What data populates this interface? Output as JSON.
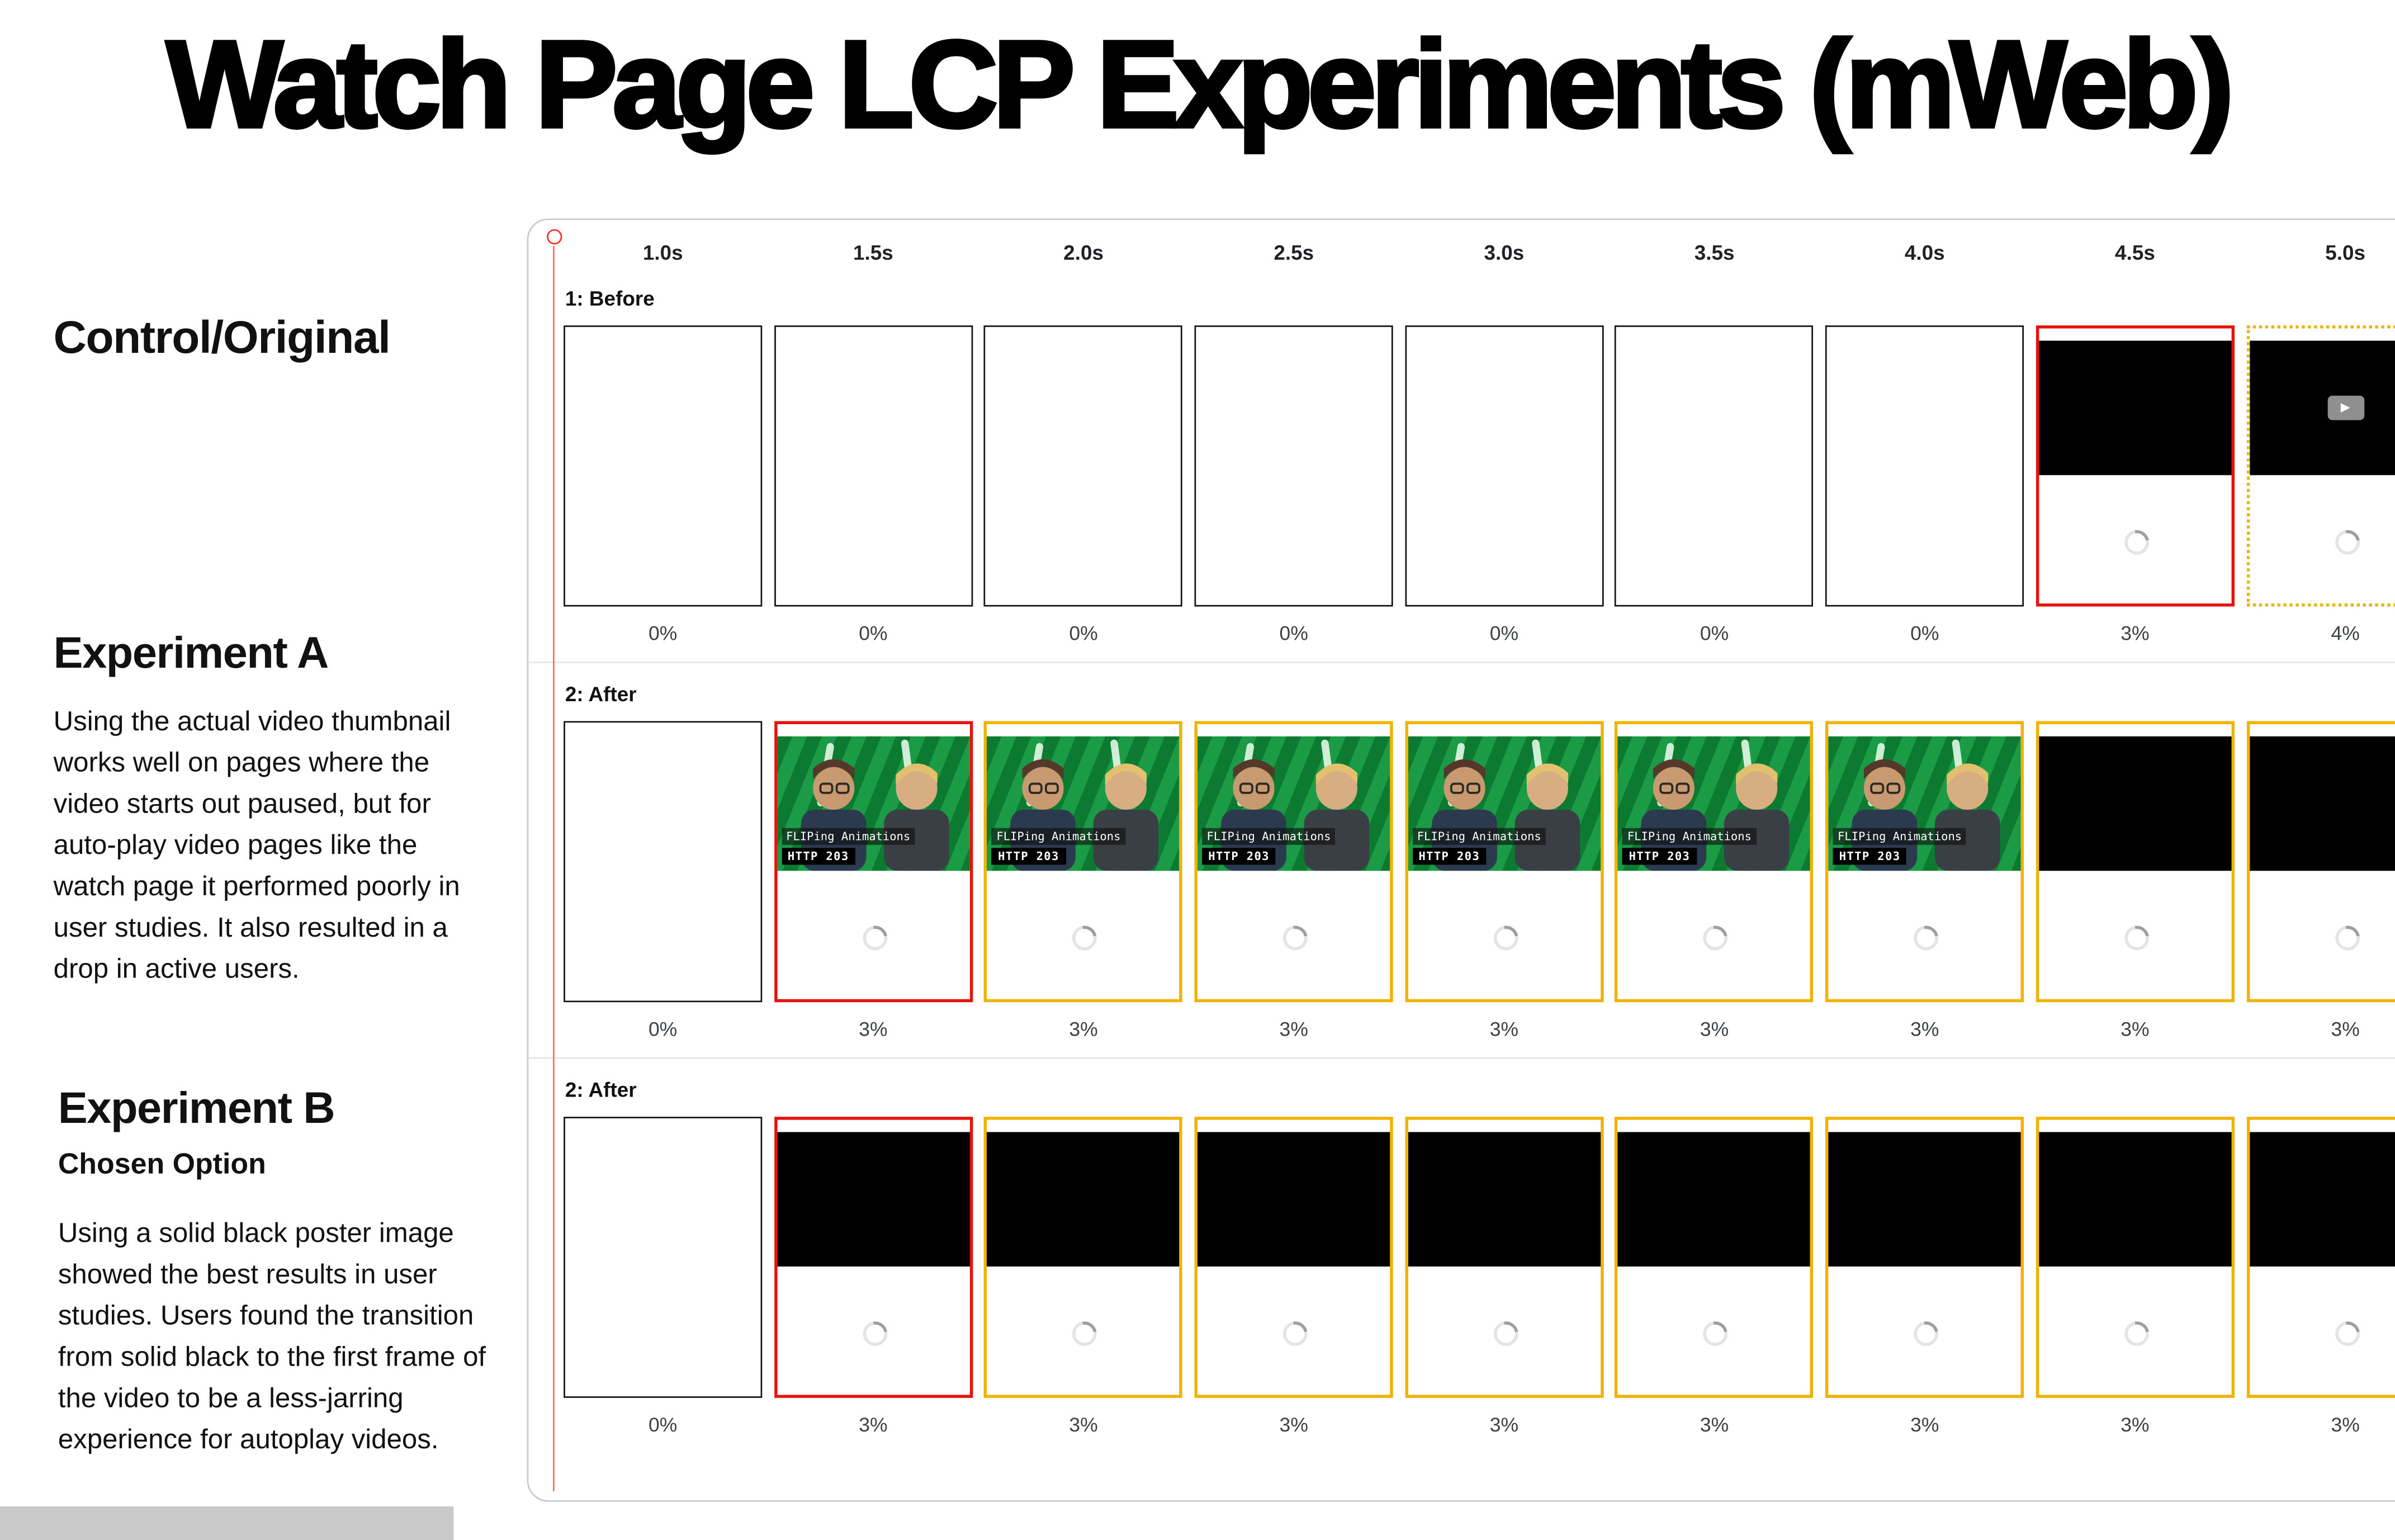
{
  "title": "Watch Page LCP Experiments (mWeb)",
  "left_column": {
    "control_label": "Control/Original",
    "experiment_a": {
      "heading": "Experiment A",
      "body": "Using the actual video thumbnail works well on pages where the video starts out paused, but for auto-play video pages like the watch page it performed poorly in user studies. It also resulted in a drop in active users."
    },
    "experiment_b": {
      "heading": "Experiment B",
      "subheading": "Chosen Option",
      "body": "Using a solid black poster image showed the best results in user studies. Users found the transition from solid black to the first frame of the video to be a less-jarring experience for autoplay videos."
    }
  },
  "filmstrip": {
    "time_labels": [
      "1.0s",
      "1.5s",
      "2.0s",
      "2.5s",
      "3.0s",
      "3.5s",
      "4.0s",
      "4.5s",
      "5.0s"
    ],
    "thumbnail": {
      "title": "FLIPing Animations",
      "badge": "HTTP 203"
    },
    "colors": {
      "frame_red": "#e8120c",
      "frame_yellow": "#f2b202",
      "timeline_red": "#ff2d21",
      "thumb_green": "#128a3b"
    },
    "rows": [
      {
        "label": "1: Before",
        "frames": [
          {
            "type": "blank",
            "border": "black",
            "percent": "0%"
          },
          {
            "type": "blank",
            "border": "black",
            "percent": "0%"
          },
          {
            "type": "blank",
            "border": "black",
            "percent": "0%"
          },
          {
            "type": "blank",
            "border": "black",
            "percent": "0%"
          },
          {
            "type": "blank",
            "border": "black",
            "percent": "0%"
          },
          {
            "type": "blank",
            "border": "black",
            "percent": "0%"
          },
          {
            "type": "blank",
            "border": "black",
            "percent": "0%"
          },
          {
            "type": "video",
            "border": "red",
            "percent": "3%"
          },
          {
            "type": "video-play",
            "border": "yellow-dotted",
            "percent": "4%"
          }
        ]
      },
      {
        "label": "2: After",
        "frames": [
          {
            "type": "blank",
            "border": "black",
            "percent": "0%"
          },
          {
            "type": "thumb",
            "border": "red",
            "percent": "3%"
          },
          {
            "type": "thumb",
            "border": "yellow",
            "percent": "3%"
          },
          {
            "type": "thumb",
            "border": "yellow",
            "percent": "3%"
          },
          {
            "type": "thumb",
            "border": "yellow",
            "percent": "3%"
          },
          {
            "type": "thumb",
            "border": "yellow",
            "percent": "3%"
          },
          {
            "type": "thumb",
            "border": "yellow",
            "percent": "3%"
          },
          {
            "type": "video",
            "border": "yellow",
            "percent": "3%"
          },
          {
            "type": "video",
            "border": "yellow",
            "percent": "3%"
          }
        ]
      },
      {
        "label": "2: After",
        "frames": [
          {
            "type": "blank",
            "border": "black",
            "percent": "0%"
          },
          {
            "type": "video",
            "border": "red",
            "percent": "3%"
          },
          {
            "type": "video",
            "border": "yellow",
            "percent": "3%"
          },
          {
            "type": "video",
            "border": "yellow",
            "percent": "3%"
          },
          {
            "type": "video",
            "border": "yellow",
            "percent": "3%"
          },
          {
            "type": "video",
            "border": "yellow",
            "percent": "3%"
          },
          {
            "type": "video",
            "border": "yellow",
            "percent": "3%"
          },
          {
            "type": "video",
            "border": "yellow",
            "percent": "3%"
          },
          {
            "type": "video",
            "border": "yellow",
            "percent": "3%"
          }
        ]
      }
    ]
  }
}
